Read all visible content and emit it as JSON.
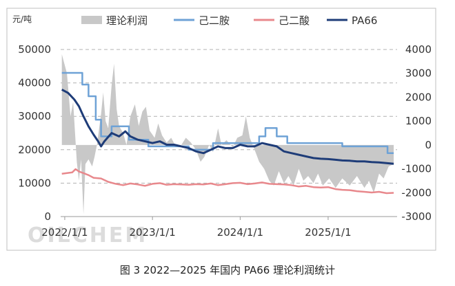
{
  "caption": "图 3  2022—2025 年国内 PA66 理论利润统计",
  "watermark": "OILCHEM",
  "chart_data": {
    "type": "line",
    "unit_left": "元/吨",
    "xlabel": "",
    "ylabel": "",
    "x_start": "2021-12-15",
    "x_end": "2025-10-15",
    "x_ticks": [
      {
        "date": "2022-01-01",
        "label": "2022/1/1"
      },
      {
        "date": "2023-01-01",
        "label": "2023/1/1"
      },
      {
        "date": "2024-01-01",
        "label": "2024/1/1"
      },
      {
        "date": "2025-01-01",
        "label": "2025/1/1"
      }
    ],
    "y_left": {
      "min": 0,
      "max": 50000,
      "ticks": [
        0,
        10000,
        20000,
        30000,
        40000,
        50000
      ]
    },
    "y_right": {
      "min": -3000,
      "max": 4000,
      "ticks": [
        -3000,
        -2000,
        -1000,
        0,
        1000,
        2000,
        3000,
        4000
      ]
    },
    "grid": "horizontal-dashed",
    "legend_position": "top",
    "series": [
      {
        "name": "理论利润",
        "kind": "area",
        "axis": "right",
        "color": "#c8c8c8",
        "points": [
          [
            "2021-12-20",
            3800
          ],
          [
            "2022-01-10",
            3000
          ],
          [
            "2022-01-25",
            1200
          ],
          [
            "2022-02-05",
            1800
          ],
          [
            "2022-02-20",
            -700
          ],
          [
            "2022-03-01",
            -1500
          ],
          [
            "2022-03-10",
            -600
          ],
          [
            "2022-03-20",
            -2900
          ],
          [
            "2022-03-28",
            -800
          ],
          [
            "2022-04-10",
            -600
          ],
          [
            "2022-04-25",
            -900
          ],
          [
            "2022-05-05",
            -500
          ],
          [
            "2022-05-15",
            0
          ],
          [
            "2022-06-01",
            1300
          ],
          [
            "2022-06-10",
            2200
          ],
          [
            "2022-06-20",
            1000
          ],
          [
            "2022-07-01",
            700
          ],
          [
            "2022-07-15",
            2500
          ],
          [
            "2022-07-25",
            3400
          ],
          [
            "2022-08-05",
            1500
          ],
          [
            "2022-08-15",
            800
          ],
          [
            "2022-09-01",
            500
          ],
          [
            "2022-09-15",
            0
          ],
          [
            "2022-10-01",
            1200
          ],
          [
            "2022-10-20",
            1700
          ],
          [
            "2022-11-05",
            800
          ],
          [
            "2022-11-20",
            1400
          ],
          [
            "2022-12-05",
            1600
          ],
          [
            "2022-12-20",
            600
          ],
          [
            "2023-01-10",
            300
          ],
          [
            "2023-01-25",
            900
          ],
          [
            "2023-02-10",
            400
          ],
          [
            "2023-03-01",
            100
          ],
          [
            "2023-03-20",
            300
          ],
          [
            "2023-04-10",
            -100
          ],
          [
            "2023-05-01",
            0
          ],
          [
            "2023-05-20",
            300
          ],
          [
            "2023-06-10",
            100
          ],
          [
            "2023-07-01",
            -200
          ],
          [
            "2023-07-20",
            -700
          ],
          [
            "2023-08-05",
            -500
          ],
          [
            "2023-08-25",
            0
          ],
          [
            "2023-09-10",
            -300
          ],
          [
            "2023-10-01",
            700
          ],
          [
            "2023-10-15",
            0
          ],
          [
            "2023-11-05",
            200
          ],
          [
            "2023-12-01",
            -100
          ],
          [
            "2023-12-20",
            300
          ],
          [
            "2024-01-10",
            400
          ],
          [
            "2024-01-25",
            1200
          ],
          [
            "2024-02-10",
            300
          ],
          [
            "2024-03-01",
            -200
          ],
          [
            "2024-03-20",
            -700
          ],
          [
            "2024-04-10",
            -1000
          ],
          [
            "2024-05-01",
            -1500
          ],
          [
            "2024-05-20",
            -1700
          ],
          [
            "2024-06-10",
            -1100
          ],
          [
            "2024-07-01",
            -1600
          ],
          [
            "2024-07-20",
            -1300
          ],
          [
            "2024-08-10",
            -1700
          ],
          [
            "2024-09-01",
            -1000
          ],
          [
            "2024-09-20",
            -1500
          ],
          [
            "2024-10-10",
            -1300
          ],
          [
            "2024-11-01",
            -1600
          ],
          [
            "2024-11-20",
            -1200
          ],
          [
            "2024-12-10",
            -1700
          ],
          [
            "2025-01-05",
            -1400
          ],
          [
            "2025-02-01",
            -1800
          ],
          [
            "2025-03-01",
            -1400
          ],
          [
            "2025-04-01",
            -1700
          ],
          [
            "2025-05-01",
            -1300
          ],
          [
            "2025-06-01",
            -1800
          ],
          [
            "2025-06-20",
            -1500
          ],
          [
            "2025-07-10",
            -2000
          ],
          [
            "2025-08-01",
            -1200
          ],
          [
            "2025-08-20",
            -1400
          ],
          [
            "2025-09-10",
            -900
          ],
          [
            "2025-10-01",
            -800
          ]
        ]
      },
      {
        "name": "己二胺",
        "kind": "step",
        "axis": "left",
        "color": "#6ea2d6",
        "points": [
          [
            "2021-12-20",
            43000
          ],
          [
            "2022-03-15",
            43000
          ],
          [
            "2022-03-15",
            39500
          ],
          [
            "2022-04-10",
            39500
          ],
          [
            "2022-04-10",
            36000
          ],
          [
            "2022-05-10",
            36000
          ],
          [
            "2022-05-10",
            29000
          ],
          [
            "2022-06-01",
            29000
          ],
          [
            "2022-06-01",
            24000
          ],
          [
            "2022-07-15",
            24000
          ],
          [
            "2022-07-15",
            27000
          ],
          [
            "2022-09-25",
            27000
          ],
          [
            "2022-09-25",
            23000
          ],
          [
            "2022-12-15",
            23000
          ],
          [
            "2022-12-15",
            21000
          ],
          [
            "2023-06-01",
            21000
          ],
          [
            "2023-06-01",
            20000
          ],
          [
            "2023-09-10",
            20000
          ],
          [
            "2023-09-10",
            22000
          ],
          [
            "2024-03-20",
            22000
          ],
          [
            "2024-03-20",
            24000
          ],
          [
            "2024-04-15",
            24000
          ],
          [
            "2024-04-15",
            26500
          ],
          [
            "2024-06-01",
            26500
          ],
          [
            "2024-06-01",
            24000
          ],
          [
            "2024-07-15",
            24000
          ],
          [
            "2024-07-15",
            22000
          ],
          [
            "2025-03-01",
            22000
          ],
          [
            "2025-03-01",
            21000
          ],
          [
            "2025-09-05",
            21000
          ],
          [
            "2025-09-05",
            19000
          ],
          [
            "2025-10-01",
            19000
          ]
        ]
      },
      {
        "name": "己二酸",
        "kind": "line",
        "axis": "left",
        "color": "#e8888c",
        "points": [
          [
            "2021-12-20",
            12800
          ],
          [
            "2022-01-10",
            13000
          ],
          [
            "2022-02-01",
            13200
          ],
          [
            "2022-02-15",
            14200
          ],
          [
            "2022-03-01",
            13500
          ],
          [
            "2022-03-20",
            13000
          ],
          [
            "2022-04-10",
            12400
          ],
          [
            "2022-05-01",
            11600
          ],
          [
            "2022-06-01",
            11400
          ],
          [
            "2022-07-01",
            10400
          ],
          [
            "2022-08-01",
            9800
          ],
          [
            "2022-09-01",
            9400
          ],
          [
            "2022-10-01",
            9900
          ],
          [
            "2022-11-01",
            9600
          ],
          [
            "2022-12-01",
            9200
          ],
          [
            "2023-01-01",
            9800
          ],
          [
            "2023-02-01",
            10000
          ],
          [
            "2023-03-01",
            9500
          ],
          [
            "2023-04-01",
            9700
          ],
          [
            "2023-05-01",
            9600
          ],
          [
            "2023-06-01",
            9500
          ],
          [
            "2023-07-01",
            9700
          ],
          [
            "2023-08-01",
            9600
          ],
          [
            "2023-09-01",
            9900
          ],
          [
            "2023-10-01",
            9400
          ],
          [
            "2023-11-01",
            9700
          ],
          [
            "2023-12-01",
            10000
          ],
          [
            "2024-01-01",
            10100
          ],
          [
            "2024-02-01",
            9700
          ],
          [
            "2024-03-01",
            9900
          ],
          [
            "2024-04-01",
            10200
          ],
          [
            "2024-05-01",
            9800
          ],
          [
            "2024-06-01",
            9700
          ],
          [
            "2024-07-01",
            9600
          ],
          [
            "2024-08-01",
            9400
          ],
          [
            "2024-09-01",
            9000
          ],
          [
            "2024-10-01",
            9200
          ],
          [
            "2024-11-01",
            8800
          ],
          [
            "2024-12-01",
            8700
          ],
          [
            "2025-01-01",
            8800
          ],
          [
            "2025-02-01",
            8200
          ],
          [
            "2025-03-01",
            8000
          ],
          [
            "2025-04-01",
            7900
          ],
          [
            "2025-05-01",
            7600
          ],
          [
            "2025-06-01",
            7400
          ],
          [
            "2025-07-01",
            7200
          ],
          [
            "2025-08-01",
            7400
          ],
          [
            "2025-09-01",
            7000
          ],
          [
            "2025-10-01",
            7100
          ]
        ]
      },
      {
        "name": "PA66",
        "kind": "line",
        "axis": "left",
        "color": "#1e3c78",
        "points": [
          [
            "2021-12-20",
            38000
          ],
          [
            "2022-01-15",
            37000
          ],
          [
            "2022-02-10",
            35000
          ],
          [
            "2022-03-01",
            33000
          ],
          [
            "2022-03-20",
            30000
          ],
          [
            "2022-04-10",
            27000
          ],
          [
            "2022-05-01",
            24500
          ],
          [
            "2022-05-20",
            22500
          ],
          [
            "2022-06-01",
            21000
          ],
          [
            "2022-06-15",
            22500
          ],
          [
            "2022-07-15",
            25000
          ],
          [
            "2022-08-15",
            24000
          ],
          [
            "2022-09-10",
            25500
          ],
          [
            "2022-10-01",
            24000
          ],
          [
            "2022-11-01",
            23000
          ],
          [
            "2022-12-01",
            22500
          ],
          [
            "2023-01-01",
            22000
          ],
          [
            "2023-02-01",
            22500
          ],
          [
            "2023-03-01",
            21500
          ],
          [
            "2023-04-01",
            21500
          ],
          [
            "2023-05-01",
            21000
          ],
          [
            "2023-06-01",
            20500
          ],
          [
            "2023-07-01",
            19500
          ],
          [
            "2023-08-01",
            19000
          ],
          [
            "2023-09-01",
            20000
          ],
          [
            "2023-10-01",
            21000
          ],
          [
            "2023-11-01",
            20500
          ],
          [
            "2023-12-01",
            20500
          ],
          [
            "2024-01-01",
            21500
          ],
          [
            "2024-02-01",
            21000
          ],
          [
            "2024-03-01",
            21000
          ],
          [
            "2024-04-01",
            22000
          ],
          [
            "2024-05-01",
            21500
          ],
          [
            "2024-06-01",
            21000
          ],
          [
            "2024-07-01",
            19500
          ],
          [
            "2024-08-01",
            19000
          ],
          [
            "2024-09-01",
            18500
          ],
          [
            "2024-10-01",
            18000
          ],
          [
            "2024-11-01",
            17500
          ],
          [
            "2024-12-01",
            17300
          ],
          [
            "2025-01-01",
            17200
          ],
          [
            "2025-02-01",
            17000
          ],
          [
            "2025-03-01",
            16800
          ],
          [
            "2025-04-01",
            16700
          ],
          [
            "2025-05-01",
            16500
          ],
          [
            "2025-06-01",
            16500
          ],
          [
            "2025-07-01",
            16300
          ],
          [
            "2025-08-01",
            16200
          ],
          [
            "2025-09-01",
            16000
          ],
          [
            "2025-10-01",
            15800
          ]
        ]
      }
    ]
  }
}
